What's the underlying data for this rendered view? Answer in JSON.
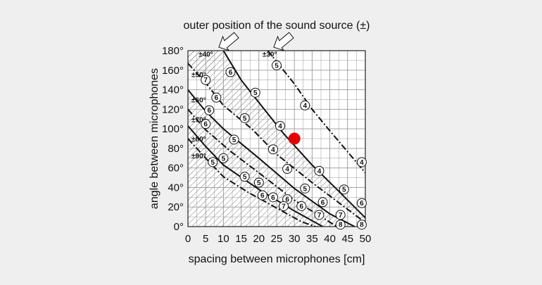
{
  "chart_data": {
    "type": "line",
    "title": "outer position of the sound source (±)",
    "xlabel": "spacing between microphones [cm]",
    "ylabel": "angle between microphones",
    "xlim": [
      0,
      50
    ],
    "ylim": [
      0,
      180
    ],
    "x_ticks": [
      "0",
      "5",
      "10",
      "15",
      "20",
      "25",
      "30",
      "35",
      "40",
      "45",
      "50"
    ],
    "y_ticks": [
      "0°",
      "20°",
      "40°",
      "60°",
      "80°",
      "100°",
      "120°",
      "140°",
      "160°",
      "180°"
    ],
    "grid": true,
    "hatched_regions": "outside the usable recording-angle zone (top-left and bottom-right of each curve band)",
    "highlight_point": {
      "x": 30,
      "y": 90,
      "color": "#e60000"
    },
    "series": [
      {
        "name": "±30°",
        "style": "dashed-dot",
        "points": [
          [
            22.5,
            180
          ],
          [
            30,
            146
          ],
          [
            35,
            120
          ],
          [
            40,
            98
          ],
          [
            47,
            68
          ],
          [
            50,
            55
          ]
        ]
      },
      {
        "name": "±40°",
        "style": "solid",
        "points": [
          [
            10,
            180
          ],
          [
            15,
            150
          ],
          [
            20,
            127
          ],
          [
            27,
            95
          ],
          [
            35,
            63
          ],
          [
            42,
            38
          ],
          [
            50,
            9
          ]
        ]
      },
      {
        "name": "±50°",
        "style": "dashed-dot",
        "points": [
          [
            0,
            167
          ],
          [
            5,
            147
          ],
          [
            10,
            124
          ],
          [
            18,
            100
          ],
          [
            25,
            74
          ],
          [
            35,
            45
          ],
          [
            50,
            4
          ]
        ]
      },
      {
        "name": "±60°",
        "style": "solid",
        "points": [
          [
            0,
            140
          ],
          [
            5,
            118
          ],
          [
            10,
            100
          ],
          [
            20,
            70
          ],
          [
            30,
            39
          ],
          [
            40,
            13
          ],
          [
            47,
            0
          ]
        ]
      },
      {
        "name": "±70°",
        "style": "dashed-dot",
        "points": [
          [
            0,
            120
          ],
          [
            5,
            99
          ],
          [
            12,
            77
          ],
          [
            20,
            55
          ],
          [
            30,
            27
          ],
          [
            42,
            0
          ]
        ]
      },
      {
        "name": "±80°",
        "style": "solid",
        "points": [
          [
            0,
            103
          ],
          [
            5,
            82
          ],
          [
            10,
            63
          ],
          [
            20,
            38
          ],
          [
            30,
            16
          ],
          [
            38,
            0
          ]
        ]
      },
      {
        "name": "±90°",
        "style": "dashed-dot",
        "points": [
          [
            0,
            90
          ],
          [
            5,
            70
          ],
          [
            10,
            51
          ],
          [
            17,
            35
          ],
          [
            25,
            19
          ],
          [
            32,
            5
          ],
          [
            36,
            0
          ]
        ]
      }
    ],
    "markers": [
      {
        "label": "⑤",
        "x": 25,
        "y": 165
      },
      {
        "label": "④",
        "x": 33,
        "y": 124
      },
      {
        "label": "④",
        "x": 26,
        "y": 103
      },
      {
        "label": "④",
        "x": 49,
        "y": 66
      },
      {
        "label": "⑥",
        "x": 12,
        "y": 158
      },
      {
        "label": "⑤",
        "x": 19,
        "y": 137
      },
      {
        "label": "⑤",
        "x": 16,
        "y": 111
      },
      {
        "label": "④",
        "x": 24,
        "y": 79
      },
      {
        "label": "④",
        "x": 37,
        "y": 57
      },
      {
        "label": "⑤",
        "x": 44,
        "y": 38
      },
      {
        "label": "⑥",
        "x": 49,
        "y": 24
      },
      {
        "label": "⑦",
        "x": 5,
        "y": 150
      },
      {
        "label": "⑤",
        "x": 13,
        "y": 89
      },
      {
        "label": "④",
        "x": 28,
        "y": 59
      },
      {
        "label": "⑤",
        "x": 33,
        "y": 39
      },
      {
        "label": "⑥",
        "x": 38,
        "y": 25
      },
      {
        "label": "⑦",
        "x": 43,
        "y": 12
      },
      {
        "label": "⑧",
        "x": 49,
        "y": 2
      },
      {
        "label": "⑥",
        "x": 8,
        "y": 132
      },
      {
        "label": "⑥",
        "x": 6,
        "y": 119
      },
      {
        "label": "⑥",
        "x": 5,
        "y": 105
      },
      {
        "label": "⑤",
        "x": 10,
        "y": 70
      },
      {
        "label": "⑤",
        "x": 20,
        "y": 45
      },
      {
        "label": "⑥",
        "x": 24,
        "y": 30
      },
      {
        "label": "⑥",
        "x": 32,
        "y": 21
      },
      {
        "label": "⑦",
        "x": 37,
        "y": 12
      },
      {
        "label": "⑧",
        "x": 43,
        "y": 2
      },
      {
        "label": "⑤",
        "x": 7,
        "y": 66
      },
      {
        "label": "⑤",
        "x": 16,
        "y": 51
      },
      {
        "label": "⑥",
        "x": 21,
        "y": 32
      },
      {
        "label": "⑥",
        "x": 28,
        "y": 28
      },
      {
        "label": "⑦",
        "x": 27,
        "y": 21
      }
    ],
    "section_labels": [
      {
        "text": "±30°",
        "x": 21,
        "y": 174
      },
      {
        "text": "±40°",
        "x": 3,
        "y": 174
      },
      {
        "text": "±50°",
        "x": 1,
        "y": 153
      },
      {
        "text": "±60°",
        "x": 1,
        "y": 127
      },
      {
        "text": "±70°",
        "x": 1,
        "y": 107
      },
      {
        "text": "±80°",
        "x": 1,
        "y": 87
      },
      {
        "text": "±90°",
        "x": 1,
        "y": 70
      }
    ]
  }
}
